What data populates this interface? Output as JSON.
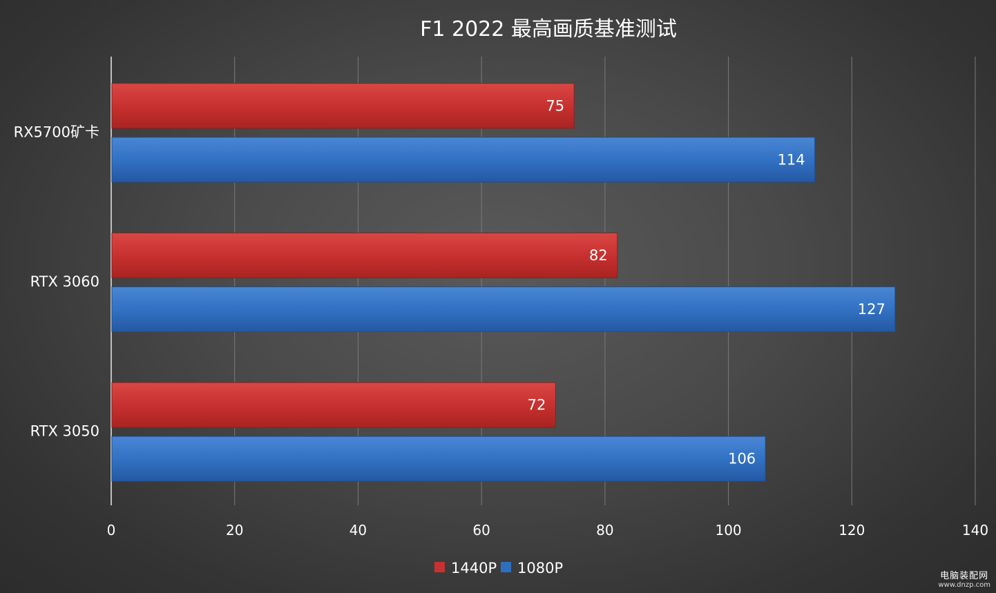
{
  "chart_data": {
    "type": "bar",
    "orientation": "horizontal",
    "title": "F1 2022  最高画质基准测试",
    "categories": [
      "RX5700矿卡",
      "RTX 3060",
      "RTX 3050"
    ],
    "series": [
      {
        "name": "1440P",
        "color": "#c8312f",
        "values": [
          75,
          82,
          72
        ]
      },
      {
        "name": "1080P",
        "color": "#2f6fc0",
        "values": [
          114,
          127,
          106
        ]
      }
    ],
    "xlim": [
      0,
      140
    ],
    "xticks": [
      0,
      20,
      40,
      60,
      80,
      100,
      120,
      140
    ],
    "grid": true,
    "legend_position": "bottom"
  },
  "watermark": {
    "line1": "电脑装配网",
    "line2": "www.dnzp.com"
  }
}
